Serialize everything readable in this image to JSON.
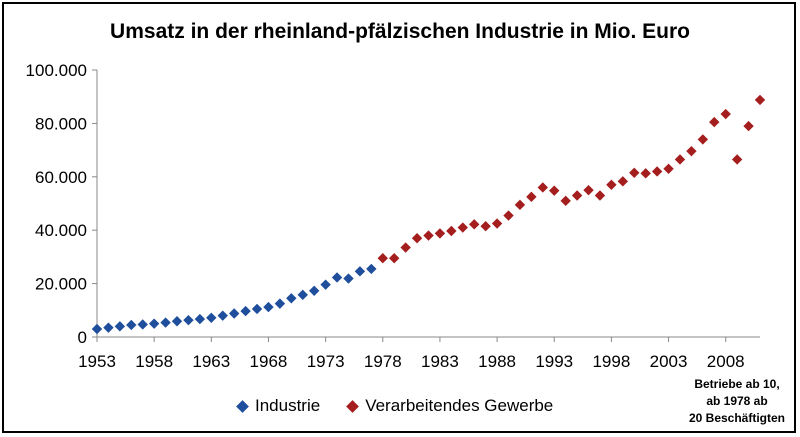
{
  "chart_data": {
    "type": "scatter",
    "title": "Umsatz in der rheinland-pfälzischen Industrie in Mio. Euro",
    "xlabel": "",
    "ylabel": "",
    "xlim": [
      1953,
      2011
    ],
    "ylim": [
      0,
      100000
    ],
    "grid": false,
    "legend_position": "bottom",
    "x_ticks": [
      "1953",
      "1958",
      "1963",
      "1968",
      "1973",
      "1978",
      "1983",
      "1988",
      "1993",
      "1998",
      "2003",
      "2008"
    ],
    "y_ticks": [
      "0",
      "20.000",
      "40.000",
      "60.000",
      "80.000",
      "100.000"
    ],
    "series": [
      {
        "name": "Industrie",
        "color": "#1f4e9c",
        "marker": "diamond",
        "x": [
          1953,
          1954,
          1955,
          1956,
          1957,
          1958,
          1959,
          1960,
          1961,
          1962,
          1963,
          1964,
          1965,
          1966,
          1967,
          1968,
          1969,
          1970,
          1971,
          1972,
          1973,
          1974,
          1975,
          1976,
          1977
        ],
        "y": [
          3000,
          3500,
          4000,
          4500,
          4700,
          5000,
          5400,
          5900,
          6300,
          6700,
          7200,
          8000,
          8800,
          9700,
          10500,
          11200,
          12500,
          14500,
          15800,
          17300,
          19600,
          22300,
          21900,
          24600,
          25500
        ]
      },
      {
        "name": "Verarbeitendes Gewerbe",
        "color": "#a51e1e",
        "marker": "diamond",
        "x": [
          1978,
          1979,
          1980,
          1981,
          1982,
          1983,
          1984,
          1985,
          1986,
          1987,
          1988,
          1989,
          1990,
          1991,
          1992,
          1993,
          1994,
          1995,
          1996,
          1997,
          1998,
          1999,
          2000,
          2001,
          2002,
          2003,
          2004,
          2005,
          2006,
          2007,
          2008,
          2009,
          2010,
          2011
        ],
        "y": [
          29500,
          29500,
          33500,
          37000,
          38000,
          38800,
          39700,
          41000,
          42200,
          41500,
          42500,
          45500,
          49500,
          52500,
          56000,
          54800,
          51000,
          53000,
          55000,
          53000,
          57000,
          58300,
          61500,
          61300,
          62000,
          63000,
          66500,
          69600,
          74000,
          80500,
          83500,
          66500,
          79000,
          88800
        ]
      }
    ],
    "annotation": [
      "Betriebe ab 10,",
      "ab 1978 ab",
      "20 Beschäftigten"
    ]
  }
}
